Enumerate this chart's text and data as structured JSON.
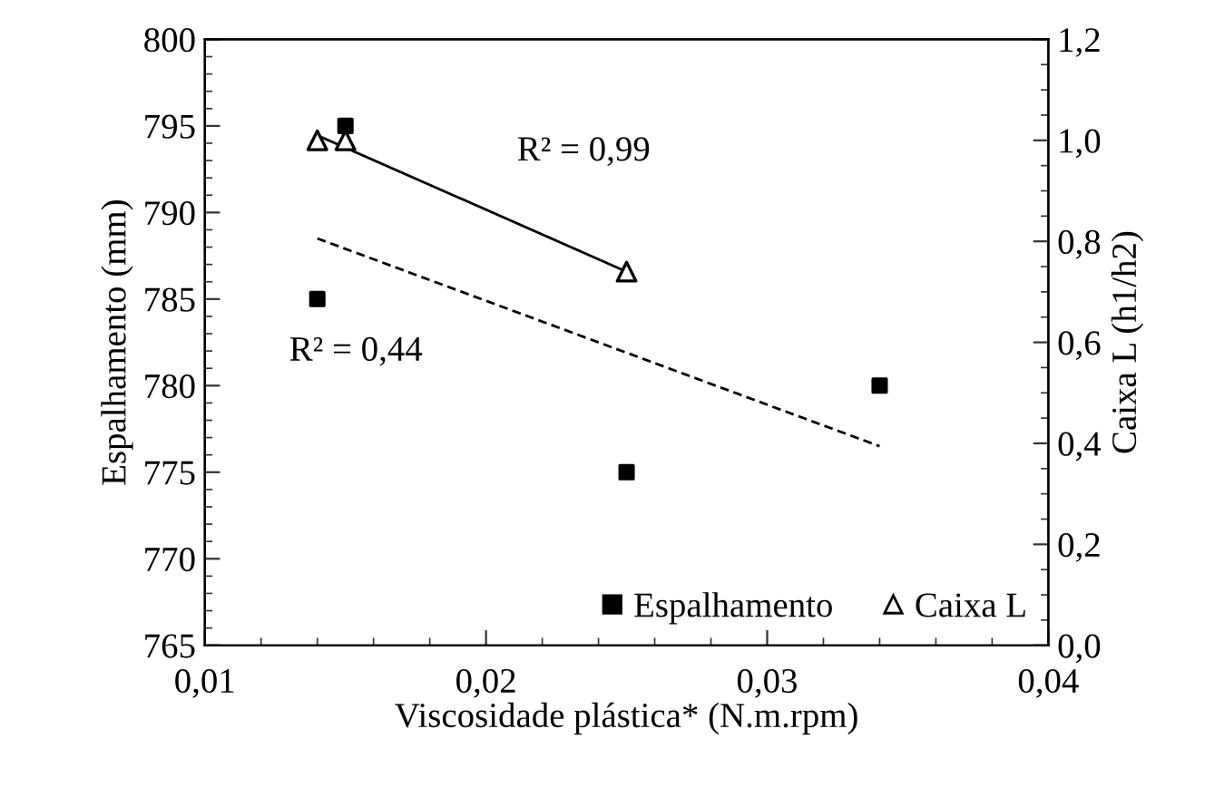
{
  "chart_data": {
    "type": "scatter",
    "xlabel": "Viscosidade plástica* (N.m.rpm)",
    "ylabel": "Espalhamento (mm)",
    "y2label": "Caixa L (h1/h2)",
    "series": [
      {
        "name": "Espalhamento",
        "marker": "square",
        "color": "#000000",
        "x": [
          0.014,
          0.015,
          0.025,
          0.034
        ],
        "values": [
          785,
          795,
          775,
          780
        ]
      },
      {
        "name": "Caixa L",
        "marker": "triangle",
        "color": "#000000",
        "axis": "y2",
        "x": [
          0.014,
          0.015,
          0.025
        ],
        "values": [
          1.0,
          1.0,
          0.74
        ]
      },
      {
        "type": "line",
        "line_style": "dashed",
        "color": "#000000",
        "x": [
          0.014,
          0.034
        ],
        "values": [
          788.5,
          776.5
        ]
      },
      {
        "type": "line",
        "line_style": "solid",
        "color": "#000000",
        "axis": "y2",
        "x": [
          0.014,
          0.025
        ],
        "values": [
          1.01,
          0.74
        ]
      }
    ],
    "annotations": [
      "R² = 0,99",
      "R² = 0,44"
    ],
    "xlim": [
      0.01,
      0.04
    ],
    "xticks": [
      {
        "value": 0.01,
        "label": "0,01"
      },
      {
        "value": 0.02,
        "label": "0,02"
      },
      {
        "value": 0.03,
        "label": "0,03"
      },
      {
        "value": 0.04,
        "label": "0,04"
      }
    ],
    "ylim": [
      765,
      800
    ],
    "yticks": [
      765,
      770,
      775,
      780,
      785,
      790,
      795,
      800
    ],
    "y2lim": [
      0,
      1.2
    ],
    "y2ticks": [
      {
        "value": 0,
        "label": "0,0"
      },
      {
        "value": 0.2,
        "label": "0,2"
      },
      {
        "value": 0.4,
        "label": "0,4"
      },
      {
        "value": 0.6,
        "label": "0,6"
      },
      {
        "value": 0.8,
        "label": "0,8"
      },
      {
        "value": 1.0,
        "label": "1,0"
      },
      {
        "value": 1.2,
        "label": "1,2"
      }
    ],
    "grid": false,
    "legend": "bottom right"
  }
}
